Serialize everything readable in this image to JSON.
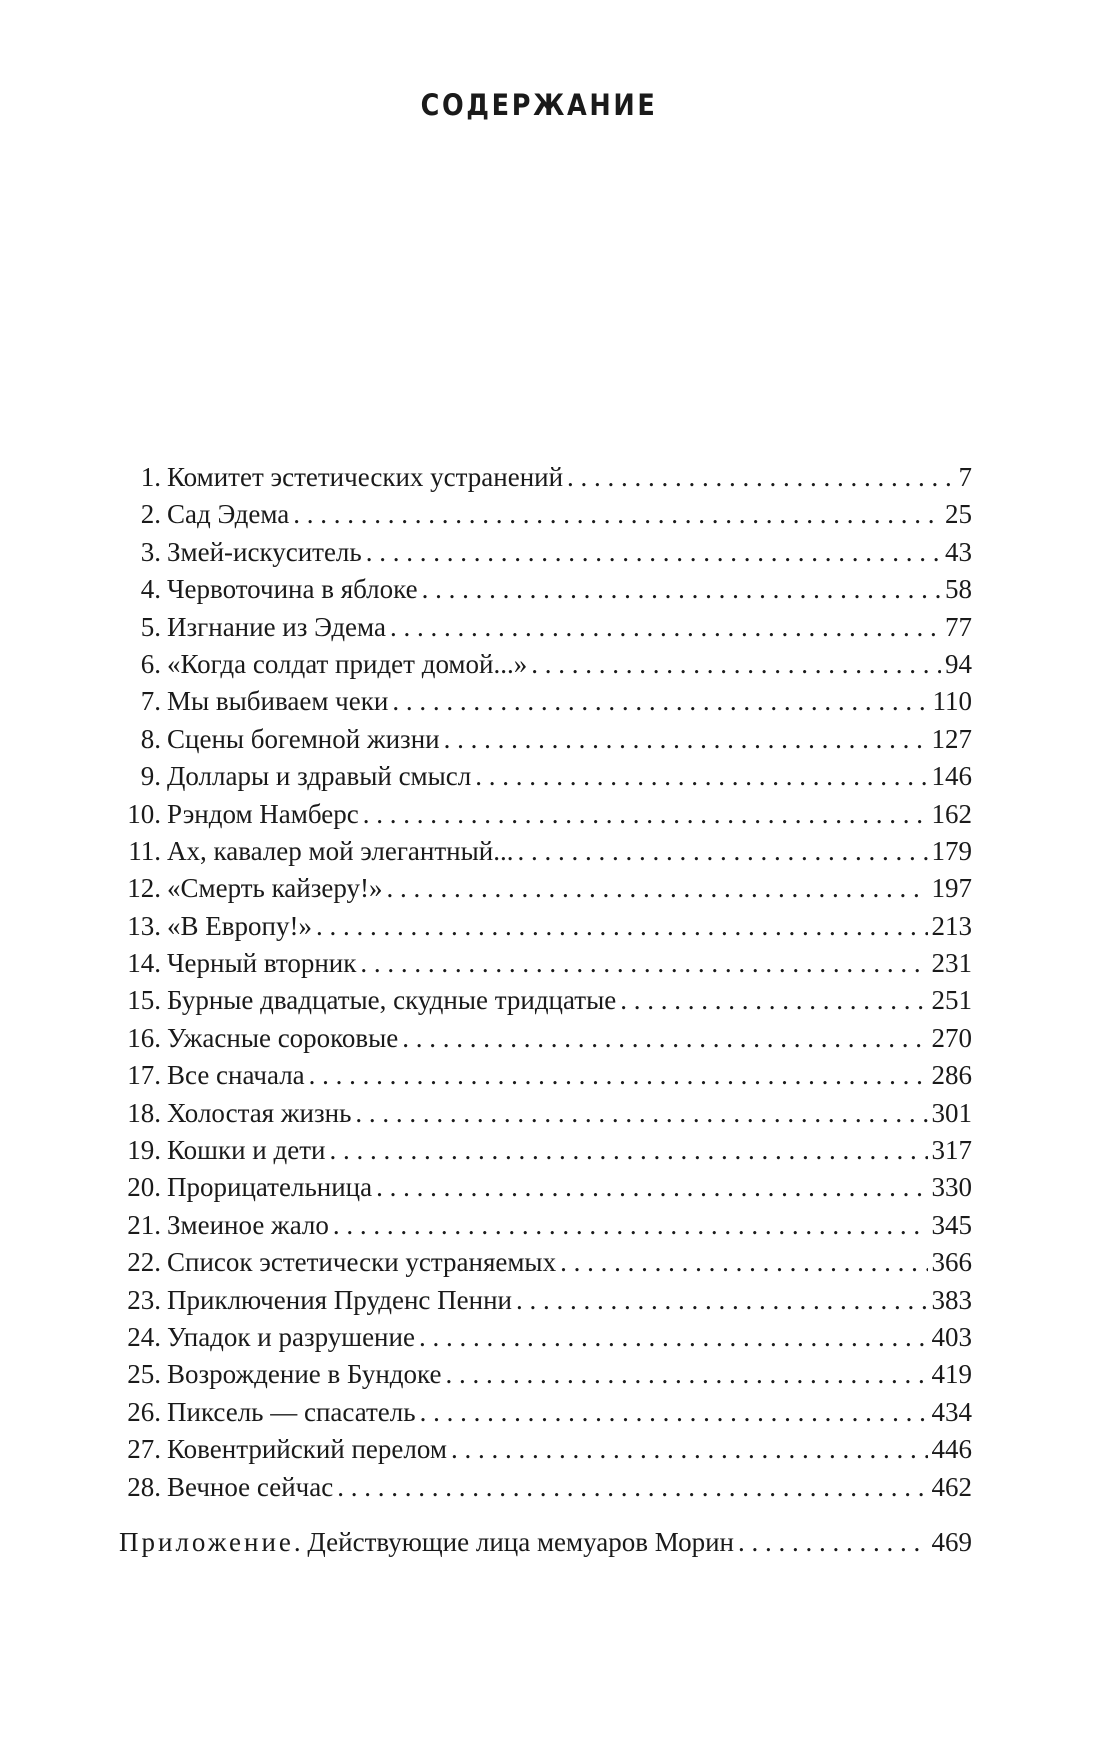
{
  "title": "СОДЕРЖАНИЕ",
  "entries": [
    {
      "num": "1.",
      "label": "Комитет эстетических устранений",
      "page": "7"
    },
    {
      "num": "2.",
      "label": "Сад Эдема",
      "page": "25"
    },
    {
      "num": "3.",
      "label": "Змей-искуситель",
      "page": "43"
    },
    {
      "num": "4.",
      "label": "Червоточина в яблоке",
      "page": "58"
    },
    {
      "num": "5.",
      "label": "Изгнание из Эдема",
      "page": "77"
    },
    {
      "num": "6.",
      "label": "«Когда солдат придет домой...»",
      "page": "94"
    },
    {
      "num": "7.",
      "label": "Мы выбиваем чеки",
      "page": "110"
    },
    {
      "num": "8.",
      "label": "Сцены богемной жизни",
      "page": "127"
    },
    {
      "num": "9.",
      "label": "Доллары и здравый смысл",
      "page": "146"
    },
    {
      "num": "10.",
      "label": "Рэндом Намберс",
      "page": "162"
    },
    {
      "num": "11.",
      "label": "Ах, кавалер мой элегантный...",
      "page": "179"
    },
    {
      "num": "12.",
      "label": "«Смерть кайзеру!»",
      "page": "197"
    },
    {
      "num": "13.",
      "label": "«В Европу!»",
      "page": "213"
    },
    {
      "num": "14.",
      "label": "Черный вторник",
      "page": "231"
    },
    {
      "num": "15.",
      "label": "Бурные двадцатые, скудные тридцатые",
      "page": "251"
    },
    {
      "num": "16.",
      "label": "Ужасные сороковые",
      "page": "270"
    },
    {
      "num": "17.",
      "label": "Все сначала",
      "page": "286"
    },
    {
      "num": "18.",
      "label": "Холостая жизнь",
      "page": "301"
    },
    {
      "num": "19.",
      "label": "Кошки и дети",
      "page": "317"
    },
    {
      "num": "20.",
      "label": "Прорицательница",
      "page": "330"
    },
    {
      "num": "21.",
      "label": "Змеиное жало",
      "page": "345"
    },
    {
      "num": "22.",
      "label": "Список эстетически устраняемых",
      "page": "366"
    },
    {
      "num": "23.",
      "label": "Приключения Пруденс Пенни",
      "page": "383"
    },
    {
      "num": "24.",
      "label": "Упадок и разрушение",
      "page": "403"
    },
    {
      "num": "25.",
      "label": "Возрождение в Бундоке",
      "page": "419"
    },
    {
      "num": "26.",
      "label": "Пиксель — спасатель",
      "page": "434"
    },
    {
      "num": "27.",
      "label": "Ковентрийский перелом",
      "page": "446"
    },
    {
      "num": "28.",
      "label": "Вечное сейчас",
      "page": "462"
    }
  ],
  "appendix": {
    "prefix": "Приложение",
    "label": ". Действующие лица мемуаров Морин",
    "page": "469"
  }
}
